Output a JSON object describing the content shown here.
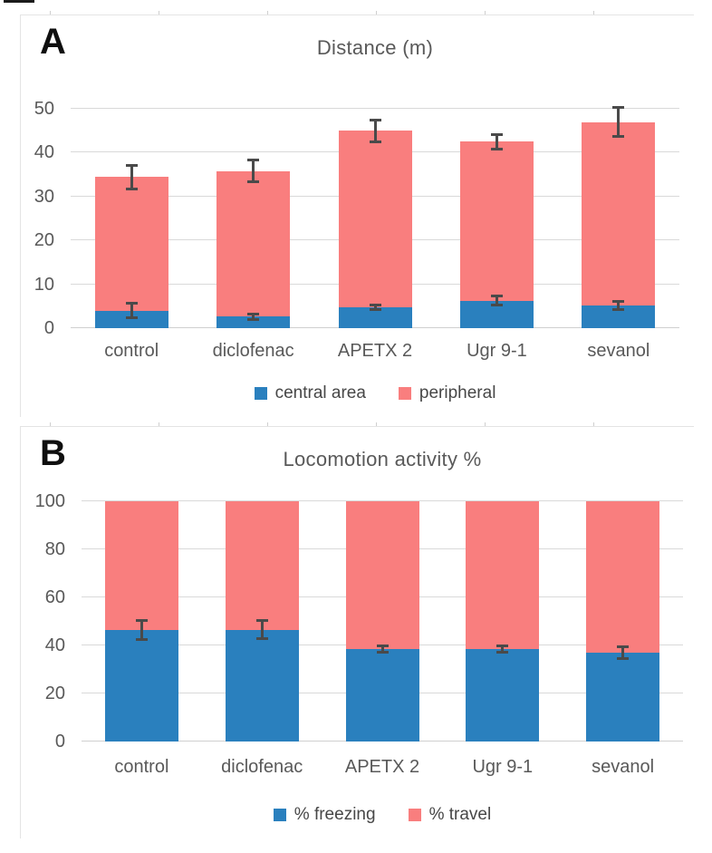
{
  "figure": {
    "colors": {
      "blue": "#2A80BE",
      "pink": "#F97E7E",
      "error_bar": "#4a4a4a",
      "gridline": "#d9d9d9",
      "axis_text": "#595959",
      "title_text": "#595959",
      "panel_border": "#e4e4e4"
    }
  },
  "chart_data": [
    {
      "id": "A",
      "type": "bar",
      "stacked": true,
      "panel_label": "A",
      "title": "Distance (m)",
      "xlabel": "",
      "ylabel": "",
      "categories": [
        "control",
        "diclofenac",
        "APETX 2",
        "Ugr 9-1",
        "sevanol"
      ],
      "series": [
        {
          "name": "central area",
          "color_key": "blue",
          "values": [
            4.0,
            2.6,
            4.8,
            6.3,
            5.2
          ],
          "errors": [
            2.0,
            0.9,
            0.8,
            1.4,
            1.3
          ]
        },
        {
          "name": "peripheral",
          "color_key": "pink",
          "values": [
            30.5,
            33.2,
            40.2,
            36.2,
            41.8
          ],
          "errors": [
            3.0,
            2.8,
            2.8,
            2.0,
            3.7
          ]
        }
      ],
      "stack_totals": [
        34.5,
        35.8,
        45.0,
        42.5,
        47.0
      ],
      "ylim": [
        0,
        50
      ],
      "yticks": [
        0,
        10,
        20,
        30,
        40,
        50
      ],
      "grid": true,
      "legend_position": "bottom",
      "legend": [
        "central area",
        "peripheral"
      ]
    },
    {
      "id": "B",
      "type": "bar",
      "stacked": true,
      "panel_label": "B",
      "title": "Locomotion activity %",
      "xlabel": "",
      "ylabel": "",
      "categories": [
        "control",
        "diclofenac",
        "APETX 2",
        "Ugr 9-1",
        "sevanol"
      ],
      "series": [
        {
          "name": "% freezing",
          "color_key": "blue",
          "values": [
            46.5,
            46.5,
            38.5,
            38.5,
            37.0
          ],
          "errors": [
            4.5,
            4.3,
            2.0,
            2.0,
            3.0
          ]
        },
        {
          "name": "% travel",
          "color_key": "pink",
          "values": [
            53.5,
            53.5,
            61.5,
            61.5,
            63.0
          ],
          "errors": null
        }
      ],
      "stack_totals": [
        100,
        100,
        100,
        100,
        100
      ],
      "ylim": [
        0,
        100
      ],
      "yticks": [
        0,
        20,
        40,
        60,
        80,
        100
      ],
      "grid": true,
      "legend_position": "bottom",
      "legend": [
        "% freezing",
        "% travel"
      ]
    }
  ]
}
